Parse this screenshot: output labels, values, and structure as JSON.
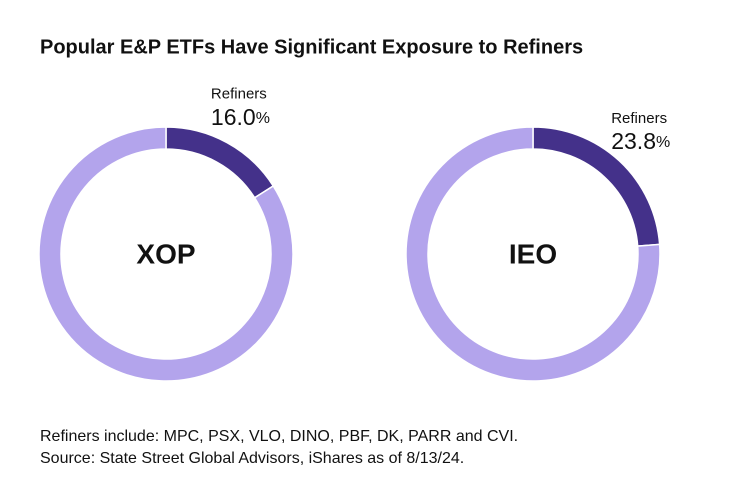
{
  "title": "Popular E&P ETFs Have Significant Exposure to Refiners",
  "notes": [
    "Refiners include: MPC, PSX, VLO, DINO, PBF, DK, PARR and CVI.",
    "Source: State Street Global Advisors, iShares as of 8/13/24."
  ],
  "chart_data": [
    {
      "type": "donut",
      "center_label": "XOP",
      "categories": [
        "Refiners",
        null
      ],
      "values": [
        16.0,
        84.0
      ],
      "value_labels": [
        "16.0%",
        null
      ],
      "colors": [
        "#44318a",
        "#b3a4ec"
      ]
    },
    {
      "type": "donut",
      "center_label": "IEO",
      "categories": [
        "Refiners",
        null
      ],
      "values": [
        23.8,
        76.2
      ],
      "value_labels": [
        "23.8%",
        null
      ],
      "colors": [
        "#44318a",
        "#b3a4ec"
      ]
    }
  ]
}
